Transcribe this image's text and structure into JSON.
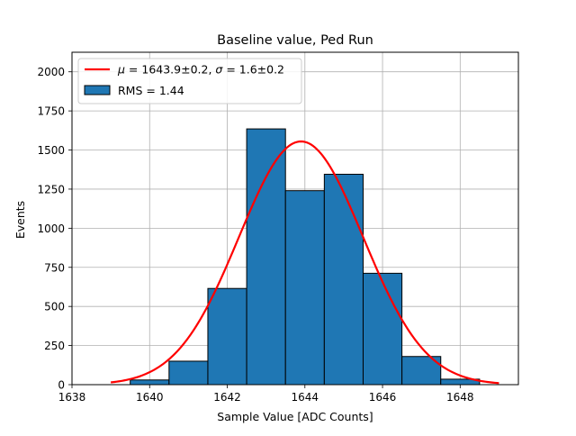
{
  "chart_data": {
    "type": "bar",
    "title": "Baseline value, Ped Run",
    "xlabel": "Sample Value [ADC Counts]",
    "ylabel": "Events",
    "xlim": [
      1638,
      1649.5
    ],
    "ylim": [
      0,
      2125
    ],
    "xticks": [
      1638,
      1640,
      1642,
      1644,
      1646,
      1648
    ],
    "yticks": [
      0,
      250,
      500,
      750,
      1000,
      1250,
      1500,
      1750,
      2000
    ],
    "grid": true,
    "legend_position": "top-left",
    "histogram": {
      "name": "RMS = 1.44",
      "color": "#1f77b4",
      "edge_color": "#000000",
      "bins": [
        {
          "x0": 1639.5,
          "x1": 1640.5,
          "count": 30
        },
        {
          "x0": 1640.5,
          "x1": 1641.5,
          "count": 150
        },
        {
          "x0": 1641.5,
          "x1": 1642.5,
          "count": 615
        },
        {
          "x0": 1642.5,
          "x1": 1643.5,
          "count": 1635
        },
        {
          "x0": 1643.5,
          "x1": 1644.5,
          "count": 1240
        },
        {
          "x0": 1644.5,
          "x1": 1645.5,
          "count": 1345
        },
        {
          "x0": 1645.5,
          "x1": 1646.5,
          "count": 712
        },
        {
          "x0": 1646.5,
          "x1": 1647.5,
          "count": 180
        },
        {
          "x0": 1647.5,
          "x1": 1648.5,
          "count": 35
        }
      ]
    },
    "fit": {
      "name_prefix_mu": "μ",
      "name_mid": " = 1643.9±0.2, ",
      "name_prefix_sigma": "σ",
      "name_end": " = 1.6±0.2",
      "color": "#ff0000",
      "amplitude": 1555,
      "mean": 1643.9,
      "sigma": 1.6,
      "x_range": [
        1639,
        1649
      ]
    }
  }
}
